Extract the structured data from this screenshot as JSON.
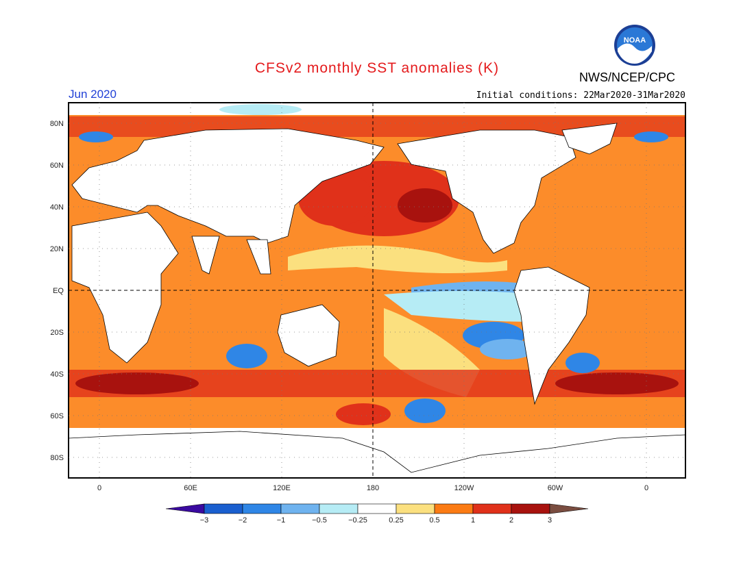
{
  "title": "CFSv2 monthly SST anomalies (K)",
  "valid_month": "Jun 2020",
  "initial_conditions": "Initial conditions: 22Mar2020-31Mar2020",
  "organization": "NWS/NCEP/CPC",
  "logo_text": "NOAA",
  "lat_labels": [
    "80N",
    "60N",
    "40N",
    "20N",
    "EQ",
    "20S",
    "40S",
    "60S",
    "80S"
  ],
  "lon_labels": [
    "0",
    "60E",
    "120E",
    "180",
    "120W",
    "60W",
    "0"
  ],
  "colorbar": {
    "colors": [
      "#3a0aa0",
      "#1a5fcf",
      "#2f86e6",
      "#6fb3ef",
      "#b6ecf5",
      "#ffffff",
      "#fbe07f",
      "#fb7b14",
      "#e0311a",
      "#a8120e",
      "#7a4d40"
    ],
    "labels": [
      "−3",
      "−2",
      "−1",
      "−0.5",
      "−0.25",
      "0.25",
      "0.5",
      "1",
      "2",
      "3"
    ]
  }
}
